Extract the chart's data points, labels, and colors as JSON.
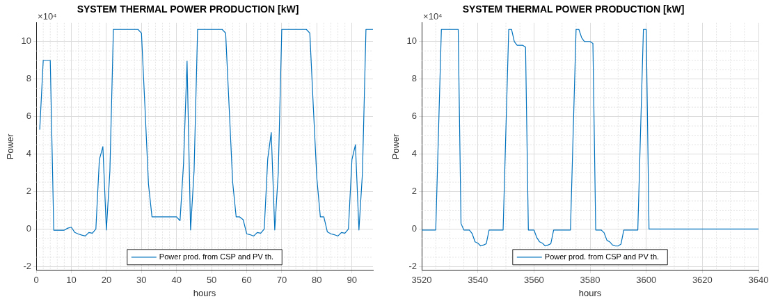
{
  "chart_data": [
    {
      "type": "line",
      "title": "SYSTEM THERMAL POWER PRODUCTION [kW]",
      "xlabel": "hours",
      "ylabel": "Power",
      "annotations": [
        "×10⁴"
      ],
      "x": [
        1,
        2,
        3,
        4,
        5,
        6,
        7,
        8,
        9,
        10,
        11,
        12,
        13,
        14,
        15,
        16,
        17,
        18,
        19,
        20,
        21,
        22,
        29,
        30,
        31,
        32,
        33,
        40,
        41,
        42,
        43,
        44,
        45,
        46,
        53,
        54,
        55,
        56,
        57,
        58,
        59,
        60,
        61,
        62,
        63,
        64,
        65,
        66,
        67,
        68,
        69,
        70,
        77,
        78,
        79,
        80,
        81,
        82,
        83,
        84,
        85,
        86,
        87,
        88,
        89,
        90,
        91,
        92,
        93,
        94,
        96
      ],
      "series": [
        {
          "name": "Power prod. from CSP and PV th.",
          "color": "#0072bd",
          "values": [
            5.3,
            9.0,
            9.0,
            9.0,
            -0.06,
            -0.06,
            -0.06,
            -0.06,
            0.05,
            0.1,
            -0.18,
            -0.26,
            -0.32,
            -0.37,
            -0.18,
            -0.22,
            0,
            3.7,
            4.4,
            -0.05,
            3.1,
            10.65,
            10.65,
            10.45,
            6.5,
            2.4,
            0.65,
            0.65,
            0.45,
            3.5,
            8.95,
            -0.05,
            3.1,
            10.65,
            10.65,
            10.45,
            6.5,
            2.5,
            0.65,
            0.65,
            0.5,
            -0.25,
            -0.3,
            -0.37,
            -0.18,
            -0.22,
            0,
            3.75,
            5.15,
            -0.05,
            3.0,
            10.65,
            10.65,
            10.45,
            6.5,
            2.7,
            0.65,
            0.65,
            -0.15,
            -0.25,
            -0.3,
            -0.37,
            -0.18,
            -0.22,
            0,
            3.7,
            4.5,
            -0.05,
            3.0,
            10.65,
            10.65
          ]
        }
      ],
      "xlim": [
        0,
        96
      ],
      "xticks": [
        0,
        10,
        20,
        30,
        40,
        50,
        60,
        70,
        80,
        90
      ],
      "ylim": [
        -2.2,
        11
      ],
      "yticks": [
        -2,
        0,
        2,
        4,
        6,
        8,
        10
      ],
      "grid": true,
      "legend": "bottom",
      "line_style": "solid",
      "marker": "none"
    },
    {
      "type": "line",
      "title": "SYSTEM THERMAL POWER PRODUCTION [kW]",
      "xlabel": "hours",
      "ylabel": "Power",
      "annotations": [
        "×10⁴"
      ],
      "x": [
        3520,
        3525,
        3527,
        3533,
        3534,
        3535,
        3537,
        3538,
        3539,
        3540,
        3541,
        3542,
        3543,
        3544,
        3549,
        3551,
        3552,
        3553,
        3554,
        3556,
        3557,
        3558,
        3560,
        3561,
        3562,
        3563,
        3564,
        3565,
        3566,
        3567,
        3568,
        3573,
        3575,
        3576,
        3577,
        3578,
        3580,
        3581,
        3582,
        3584,
        3585,
        3586,
        3587,
        3588,
        3589,
        3590,
        3591,
        3592,
        3597,
        3599,
        3600,
        3601,
        3640
      ],
      "series": [
        {
          "name": "Power prod. from CSP and PV th.",
          "color": "#0072bd",
          "values": [
            -0.05,
            -0.05,
            10.65,
            10.65,
            0.3,
            -0.05,
            -0.05,
            -0.25,
            -0.68,
            -0.75,
            -0.9,
            -0.85,
            -0.78,
            -0.05,
            -0.05,
            10.65,
            10.65,
            10.0,
            9.8,
            9.8,
            9.7,
            -0.05,
            -0.05,
            -0.45,
            -0.68,
            -0.75,
            -0.9,
            -0.85,
            -0.78,
            -0.05,
            -0.05,
            -0.05,
            10.65,
            10.65,
            10.2,
            10.0,
            10.0,
            9.9,
            -0.05,
            -0.05,
            -0.2,
            -0.6,
            -0.68,
            -0.85,
            -0.9,
            -0.9,
            -0.8,
            -0.05,
            -0.05,
            10.65,
            10.65,
            0,
            0
          ]
        }
      ],
      "xlim": [
        3520,
        3640
      ],
      "xticks": [
        3520,
        3540,
        3560,
        3580,
        3600,
        3620,
        3640
      ],
      "ylim": [
        -2.2,
        11
      ],
      "yticks": [
        -2,
        0,
        2,
        4,
        6,
        8,
        10
      ],
      "grid": true,
      "legend": "bottom",
      "line_style": "solid",
      "marker": "none"
    }
  ]
}
